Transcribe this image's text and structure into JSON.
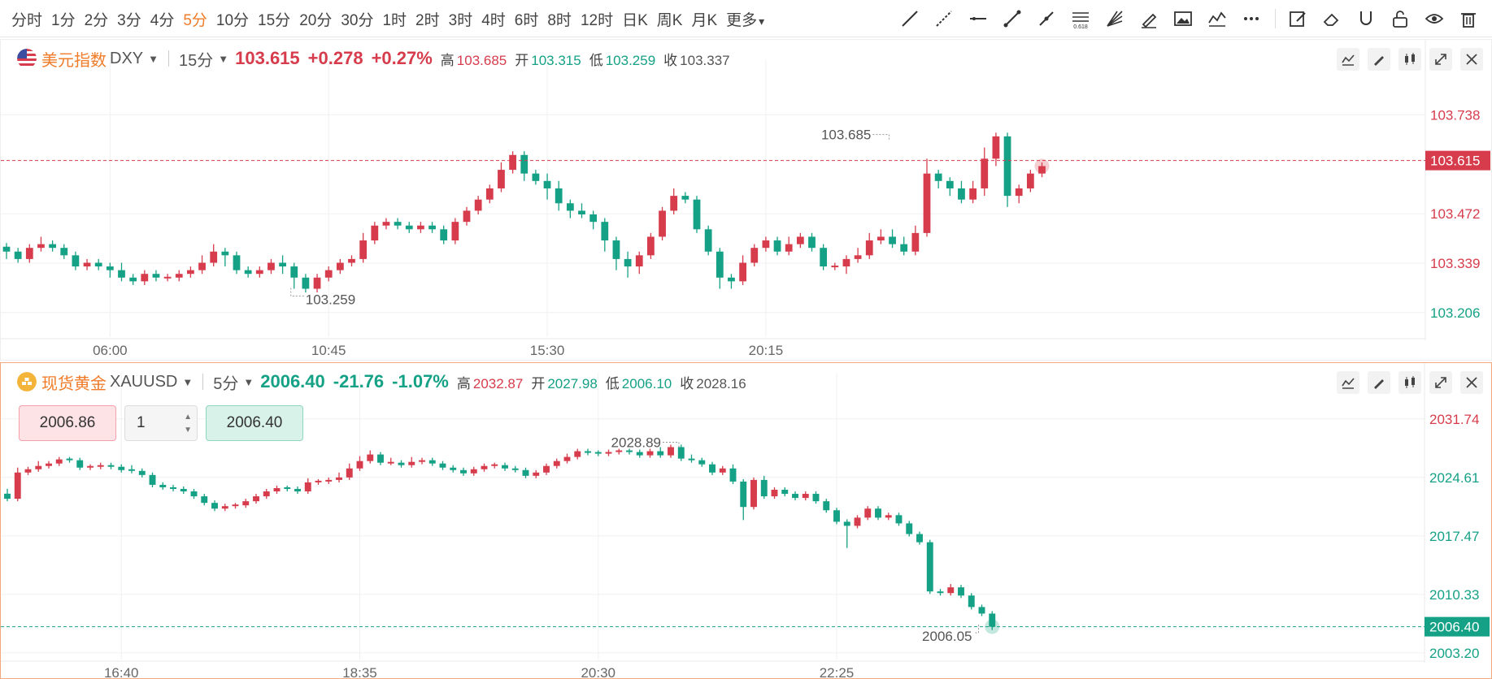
{
  "toolbar": {
    "intervals": [
      "分时",
      "1分",
      "2分",
      "3分",
      "4分",
      "5分",
      "10分",
      "15分",
      "20分",
      "30分",
      "1时",
      "2时",
      "3时",
      "4时",
      "6时",
      "8时",
      "12时",
      "日K",
      "周K",
      "月K"
    ],
    "active_index": 5,
    "more_label": "更多",
    "tools": [
      "trend-line-icon",
      "ray-line-icon",
      "horizontal-line-icon",
      "segment-line-icon",
      "parallel-line-icon",
      "fibonacci-icon",
      "gann-fan-icon",
      "brush-icon",
      "image-icon",
      "wave-pattern-icon",
      "more-dots-icon",
      "edit-note-icon",
      "eraser-icon",
      "magnet-icon",
      "unlock-icon",
      "eye-icon",
      "trash-icon"
    ]
  },
  "panels": [
    {
      "name": "美元指数",
      "symbol": "DXY",
      "interval": "15分",
      "price": "103.615",
      "change": "+0.278",
      "change_pct": "+0.27%",
      "trend": "up",
      "ohlc": [
        {
          "label": "高",
          "value": "103.685",
          "color": "#d63c4c"
        },
        {
          "label": "开",
          "value": "103.315",
          "color": "#15a185"
        },
        {
          "label": "低",
          "value": "103.259",
          "color": "#15a185"
        },
        {
          "label": "收",
          "value": "103.337",
          "color": "#555555"
        }
      ],
      "chart_data": {
        "type": "candlestick",
        "ylim": [
          103.14,
          103.8
        ],
        "y_ticks": [
          "103.738",
          "103.472",
          "103.339",
          "103.206"
        ],
        "y_tick_colors": [
          "#d63c4c",
          "#d63c4c",
          "#d63c4c",
          "#15a185"
        ],
        "x_ticks": [
          "06:00",
          "10:45",
          "15:30",
          "20:15"
        ],
        "x_tick_index": [
          9,
          28,
          47,
          66
        ],
        "current_price": 103.615,
        "current_label": "103.615",
        "current_color": "#d63c4c",
        "high_label": "103.685",
        "high_index": 76,
        "low_label": "103.259",
        "low_index": 25,
        "closes": [
          103.37,
          103.35,
          103.38,
          103.39,
          103.38,
          103.36,
          103.33,
          103.34,
          103.33,
          103.32,
          103.3,
          103.29,
          103.31,
          103.3,
          103.3,
          103.31,
          103.32,
          103.34,
          103.37,
          103.36,
          103.32,
          103.31,
          103.32,
          103.34,
          103.33,
          103.3,
          103.27,
          103.3,
          103.32,
          103.34,
          103.35,
          103.4,
          103.44,
          103.45,
          103.44,
          103.43,
          103.44,
          103.43,
          103.4,
          103.45,
          103.48,
          103.51,
          103.54,
          103.59,
          103.63,
          103.58,
          103.56,
          103.54,
          103.5,
          103.48,
          103.47,
          103.45,
          103.4,
          103.35,
          103.33,
          103.36,
          103.41,
          103.48,
          103.52,
          103.51,
          103.43,
          103.37,
          103.3,
          103.29,
          103.34,
          103.38,
          103.4,
          103.37,
          103.39,
          103.41,
          103.38,
          103.33,
          103.33,
          103.35,
          103.36,
          103.4,
          103.41,
          103.39,
          103.37,
          103.42,
          103.58,
          103.56,
          103.54,
          103.51,
          103.54,
          103.62,
          103.68,
          103.52,
          103.54,
          103.58,
          103.6
        ],
        "highs_extra": [
          0.01,
          0.01,
          0.01,
          0.02,
          0.01,
          0.01,
          0.01,
          0.01,
          0.01,
          0.01,
          0.02,
          0.01,
          0.01,
          0.01,
          0.01,
          0.01,
          0.01,
          0.02,
          0.02,
          0.01,
          0.01,
          0.01,
          0.01,
          0.01,
          0.02,
          0.01,
          0.01,
          0.01,
          0.01,
          0.01,
          0.01,
          0.02,
          0.01,
          0.01,
          0.01,
          0.01,
          0.01,
          0.01,
          0.01,
          0.01,
          0.01,
          0.01,
          0.01,
          0.02,
          0.01,
          0.01,
          0.01,
          0.02,
          0.02,
          0.01,
          0.02,
          0.01,
          0.01,
          0.01,
          0.02,
          0.01,
          0.01,
          0.01,
          0.02,
          0.01,
          0.01,
          0.01,
          0.01,
          0.01,
          0.02,
          0.01,
          0.01,
          0.01,
          0.02,
          0.01,
          0.01,
          0.01,
          0.01,
          0.01,
          0.02,
          0.02,
          0.02,
          0.02,
          0.02,
          0.02,
          0.04,
          0.01,
          0.01,
          0.02,
          0.02,
          0.03,
          0.01,
          0.01,
          0.01,
          0.01,
          0.01
        ],
        "lows_extra": [
          0.02,
          0.01,
          0.01,
          0.01,
          0.01,
          0.01,
          0.01,
          0.01,
          0.01,
          0.02,
          0.01,
          0.01,
          0.01,
          0.01,
          0.01,
          0.01,
          0.01,
          0.01,
          0.01,
          0.03,
          0.01,
          0.01,
          0.01,
          0.01,
          0.02,
          0.03,
          0.01,
          0.01,
          0.01,
          0.01,
          0.01,
          0.01,
          0.01,
          0.01,
          0.01,
          0.01,
          0.01,
          0.01,
          0.01,
          0.01,
          0.01,
          0.01,
          0.01,
          0.01,
          0.01,
          0.02,
          0.01,
          0.03,
          0.02,
          0.02,
          0.01,
          0.02,
          0.03,
          0.03,
          0.03,
          0.02,
          0.01,
          0.01,
          0.01,
          0.01,
          0.01,
          0.01,
          0.03,
          0.02,
          0.01,
          0.01,
          0.01,
          0.01,
          0.01,
          0.01,
          0.01,
          0.01,
          0.01,
          0.02,
          0.01,
          0.01,
          0.01,
          0.01,
          0.01,
          0.01,
          0.01,
          0.02,
          0.02,
          0.01,
          0.01,
          0.02,
          0.02,
          0.03,
          0.02,
          0.01,
          0.01
        ]
      }
    },
    {
      "name": "现货黄金",
      "symbol": "XAUUSD",
      "interval": "5分",
      "price": "2006.40",
      "change": "-21.76",
      "change_pct": "-1.07%",
      "trend": "down",
      "ohlc": [
        {
          "label": "高",
          "value": "2032.87",
          "color": "#d63c4c"
        },
        {
          "label": "开",
          "value": "2027.98",
          "color": "#15a185"
        },
        {
          "label": "低",
          "value": "2006.10",
          "color": "#15a185"
        },
        {
          "label": "收",
          "value": "2028.16",
          "color": "#555555"
        }
      ],
      "trade": {
        "sell": "2006.86",
        "qty": "1",
        "buy": "2006.40"
      },
      "chart_data": {
        "type": "candlestick",
        "ylim": [
          2002.4,
          2033.4
        ],
        "y_ticks": [
          "2031.74",
          "2024.61",
          "2017.47",
          "2010.33",
          "2003.20"
        ],
        "y_tick_colors": [
          "#d63c4c",
          "#15a185",
          "#15a185",
          "#15a185",
          "#15a185"
        ],
        "x_ticks": [
          "16:40",
          "18:35",
          "20:30",
          "22:25"
        ],
        "x_tick_index": [
          11,
          34,
          57,
          80
        ],
        "current_price": 2006.4,
        "current_label": "2006.40",
        "current_color": "#15a185",
        "high_label": "2028.89",
        "high_index": 64,
        "low_label": "2006.05",
        "low_index": 94,
        "closes": [
          2022.0,
          2025.2,
          2025.6,
          2026.0,
          2026.3,
          2026.8,
          2026.7,
          2025.8,
          2025.9,
          2026.1,
          2025.9,
          2025.5,
          2025.4,
          2024.9,
          2023.7,
          2023.4,
          2023.2,
          2022.9,
          2022.3,
          2021.5,
          2020.8,
          2021.1,
          2021.2,
          2021.7,
          2022.3,
          2022.9,
          2023.3,
          2023.2,
          2022.9,
          2024.0,
          2024.1,
          2024.3,
          2024.6,
          2025.7,
          2026.6,
          2027.4,
          2026.4,
          2026.4,
          2026.1,
          2026.5,
          2026.7,
          2026.3,
          2025.8,
          2025.5,
          2025.1,
          2025.6,
          2026.0,
          2026.1,
          2025.7,
          2025.5,
          2024.8,
          2025.2,
          2026.0,
          2026.6,
          2027.1,
          2027.8,
          2027.6,
          2027.5,
          2027.7,
          2027.8,
          2027.7,
          2027.3,
          2027.8,
          2027.3,
          2028.3,
          2026.9,
          2026.7,
          2026.2,
          2025.2,
          2025.7,
          2024.1,
          2021.0,
          2024.3,
          2022.3,
          2023.1,
          2022.6,
          2022.1,
          2022.6,
          2021.7,
          2020.6,
          2019.2,
          2018.7,
          2019.7,
          2020.8,
          2019.7,
          2020.0,
          2019.0,
          2017.7,
          2016.7,
          2010.7,
          2010.5,
          2011.2,
          2010.2,
          2008.8,
          2008.0,
          2006.4
        ],
        "highs_extra": [
          0.6,
          0.6,
          0.3,
          0.6,
          0.3,
          0.3,
          0.3,
          0.3,
          0.3,
          0.3,
          0.3,
          0.3,
          0.6,
          0.3,
          0.3,
          0.3,
          0.3,
          0.3,
          0.3,
          0.3,
          0.3,
          0.3,
          0.3,
          0.3,
          0.3,
          0.3,
          0.3,
          0.3,
          0.3,
          0.5,
          0.3,
          0.3,
          0.6,
          0.6,
          0.6,
          0.5,
          0.3,
          0.6,
          0.3,
          0.6,
          0.3,
          0.3,
          0.3,
          0.3,
          0.3,
          0.3,
          0.3,
          0.3,
          0.3,
          0.3,
          0.3,
          0.3,
          0.3,
          0.3,
          0.4,
          0.3,
          0.3,
          0.3,
          0.3,
          0.3,
          0.3,
          0.3,
          0.3,
          0.5,
          0.3,
          0.3,
          0.5,
          0.3,
          0.3,
          0.3,
          0.5,
          0.3,
          0.3,
          0.5,
          0.3,
          0.3,
          0.3,
          0.3,
          0.3,
          0.3,
          0.3,
          0.3,
          0.3,
          0.3,
          0.3,
          0.3,
          0.3,
          0.3,
          0.3,
          0.3,
          0.3,
          0.4,
          0.3,
          0.3,
          0.3,
          0.3
        ],
        "lows_extra": [
          0.3,
          0.3,
          0.3,
          0.3,
          0.3,
          0.3,
          0.3,
          0.3,
          0.3,
          0.3,
          0.3,
          0.3,
          0.3,
          0.3,
          0.3,
          0.3,
          0.3,
          0.3,
          0.3,
          0.3,
          0.3,
          0.3,
          0.3,
          0.3,
          0.3,
          0.3,
          0.3,
          0.3,
          0.3,
          0.3,
          0.3,
          0.3,
          0.3,
          0.3,
          0.3,
          0.3,
          0.3,
          0.3,
          0.3,
          0.3,
          0.3,
          0.3,
          0.3,
          0.3,
          0.3,
          0.3,
          0.3,
          0.3,
          0.3,
          0.3,
          0.3,
          0.3,
          0.3,
          0.3,
          0.3,
          0.3,
          0.3,
          0.3,
          0.3,
          0.3,
          0.3,
          0.3,
          0.3,
          0.3,
          0.3,
          0.3,
          0.3,
          0.3,
          0.3,
          0.3,
          0.3,
          1.6,
          0.3,
          0.3,
          0.3,
          0.3,
          0.3,
          0.3,
          0.3,
          0.3,
          0.3,
          2.7,
          0.3,
          0.3,
          0.3,
          0.3,
          0.3,
          0.3,
          0.3,
          0.3,
          0.3,
          0.3,
          0.3,
          0.3,
          0.3,
          0.4
        ]
      }
    }
  ]
}
